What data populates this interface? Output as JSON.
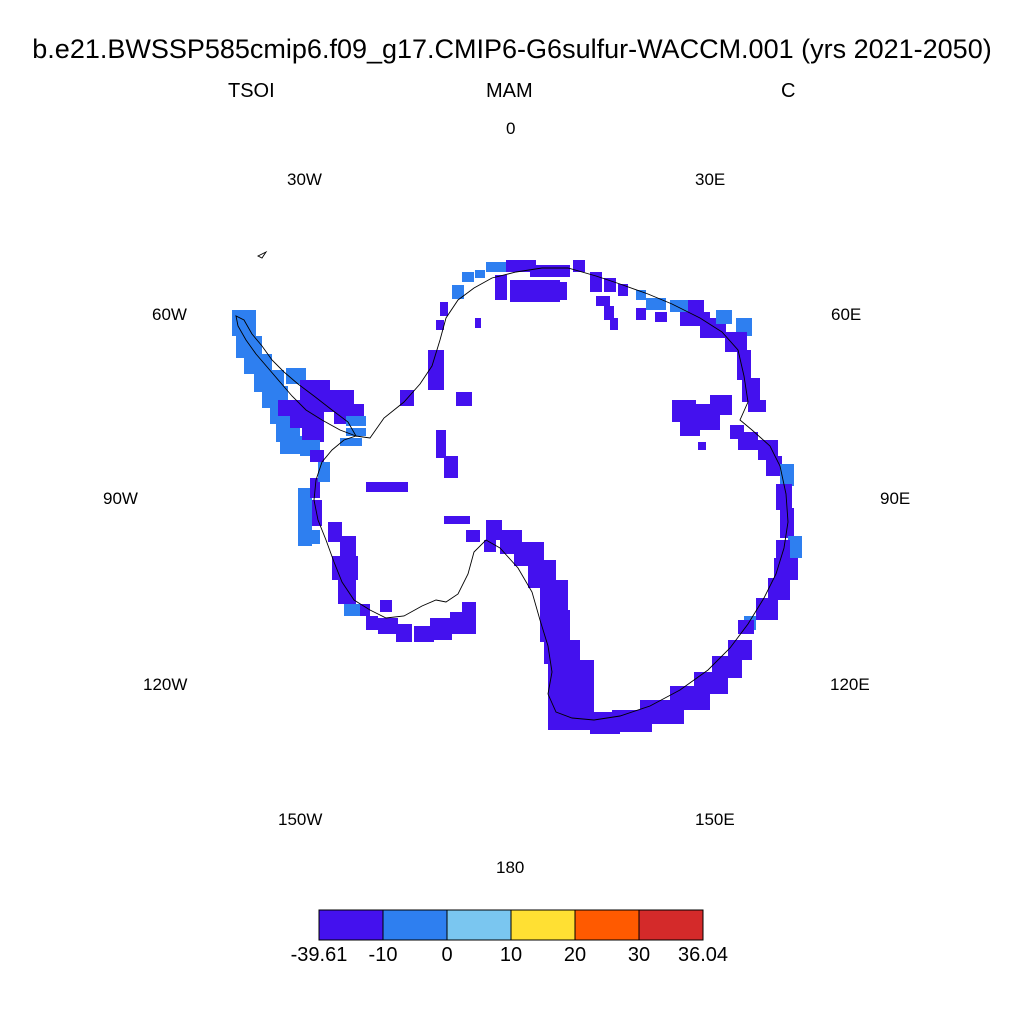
{
  "title": "b.e21.BWSSP585cmip6.f09_g17.CMIP6-G6sulfur-WACCM.001 (yrs 2021-2050)",
  "variable": "TSOI",
  "season": "MAM",
  "units": "C",
  "longitude_labels": {
    "lon_0": "0",
    "lon_30e": "30E",
    "lon_60e": "60E",
    "lon_90e": "90E",
    "lon_120e": "120E",
    "lon_150e": "150E",
    "lon_180": "180",
    "lon_150w": "150W",
    "lon_120w": "120W",
    "lon_90w": "90W",
    "lon_60w": "60W",
    "lon_30w": "30W"
  },
  "colorbar": {
    "colors": [
      "#4411ee",
      "#2e7ff0",
      "#7ac6f0",
      "#ffe033",
      "#ff5a00",
      "#d42a2a"
    ],
    "labels": [
      "-39.61",
      "-10",
      "0",
      "10",
      "20",
      "30",
      "36.04"
    ]
  },
  "map_colors": {
    "dominant": "#4411ee",
    "secondary": "#2e7ff0",
    "coastline": "#000000"
  }
}
